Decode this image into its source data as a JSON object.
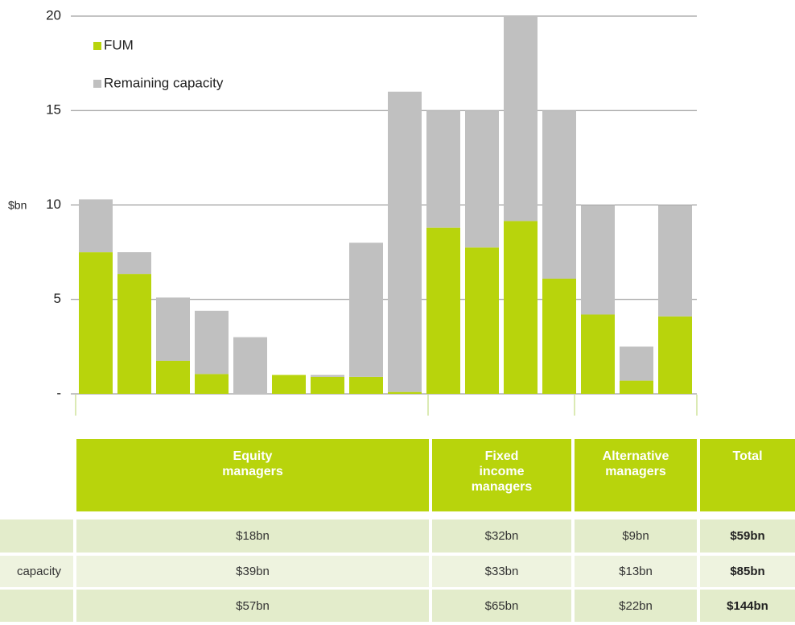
{
  "chart_data": {
    "type": "stacked_bar",
    "ylabel": "$bn",
    "series": [
      {
        "name": "FUM",
        "color": "#b8d40c",
        "values": [
          7.5,
          6.35,
          1.75,
          1.05,
          0,
          1.0,
          0.9,
          0.9,
          0.1,
          8.8,
          7.75,
          9.15,
          6.1,
          4.2,
          0.7,
          4.1
        ]
      },
      {
        "name": "Remaining capacity",
        "color": "#c0c0c0",
        "values": [
          2.8,
          1.15,
          3.35,
          3.35,
          3.0,
          0,
          0.1,
          7.1,
          15.9,
          6.2,
          7.25,
          10.85,
          8.9,
          5.8,
          1.8,
          5.9
        ]
      }
    ],
    "ylim": [
      0,
      20
    ],
    "yticks": [
      {
        "value": 0,
        "label": "-"
      },
      5,
      10,
      15,
      20
    ],
    "grid": true,
    "legend": "top-left"
  },
  "table": {
    "header": [
      "Equity\nmanagers",
      "Fixed\nincome\nmanagers",
      "Alternative\nmanagers",
      "Total"
    ],
    "row_label": "capacity",
    "rows": [
      [
        "$18bn",
        "$32bn",
        "$9bn",
        "$59bn"
      ],
      [
        "$39bn",
        "$33bn",
        "$13bn",
        "$85bn"
      ],
      [
        "$57bn",
        "$65bn",
        "$22bn",
        "$144bn"
      ]
    ]
  }
}
